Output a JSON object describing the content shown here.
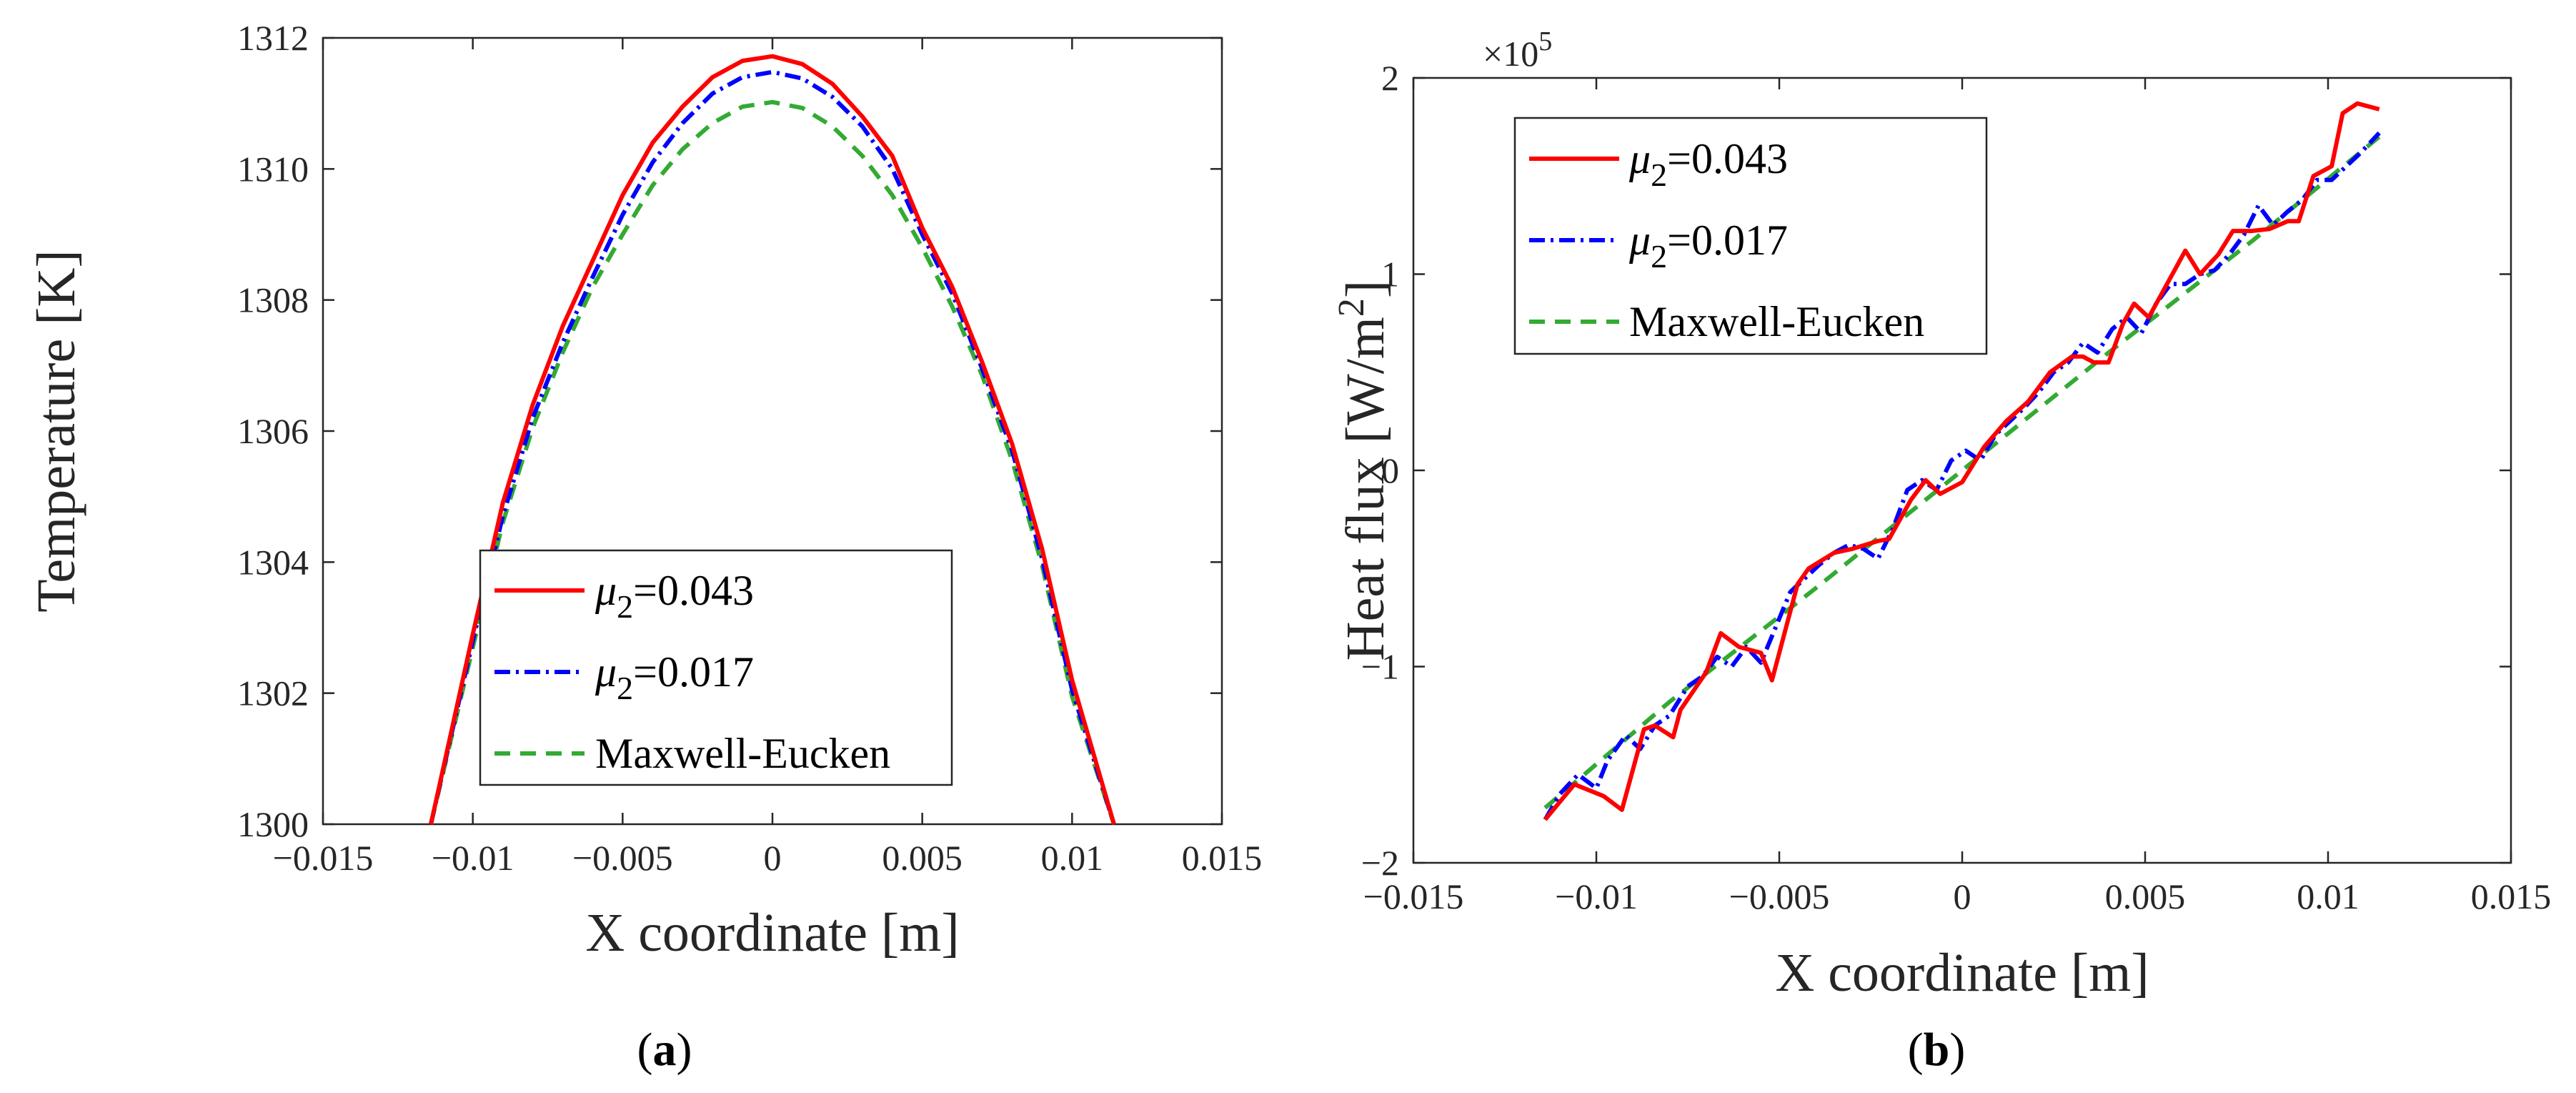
{
  "chart_data": [
    {
      "type": "line",
      "panel_label": "a",
      "xlabel": "X coordinate [m]",
      "ylabel": "Temperature [K]",
      "xlim": [
        -0.015,
        0.015
      ],
      "ylim": [
        1300,
        1312
      ],
      "xticks": [
        -0.015,
        -0.01,
        -0.005,
        0,
        0.005,
        0.01,
        0.015
      ],
      "xtick_labels": [
        "−0.015",
        "−0.01",
        "−0.005",
        "0",
        "0.005",
        "0.01",
        "0.015"
      ],
      "yticks": [
        1300,
        1302,
        1304,
        1306,
        1308,
        1310,
        1312
      ],
      "ytick_labels": [
        "1300",
        "1302",
        "1304",
        "1306",
        "1308",
        "1310",
        "1312"
      ],
      "legend_position": "bottom-center",
      "series": [
        {
          "name_sym": "μ",
          "name_sub": "2",
          "name_tail": "=0.043",
          "color": "#ff0000",
          "style": "solid",
          "x": [
            -0.0114,
            -0.01,
            -0.009,
            -0.008,
            -0.007,
            -0.006,
            -0.005,
            -0.004,
            -0.003,
            -0.002,
            -0.001,
            0,
            0.001,
            0.002,
            0.003,
            0.004,
            0.005,
            0.006,
            0.007,
            0.008,
            0.009,
            0.01,
            0.0114
          ],
          "y": [
            1300.0,
            1302.9,
            1304.9,
            1306.4,
            1307.6,
            1308.6,
            1309.6,
            1310.4,
            1310.95,
            1311.4,
            1311.65,
            1311.72,
            1311.6,
            1311.3,
            1310.8,
            1310.2,
            1309.1,
            1308.2,
            1307.05,
            1305.8,
            1304.2,
            1302.2,
            1300.0
          ]
        },
        {
          "name_sym": "μ",
          "name_sub": "2",
          "name_tail": "=0.017",
          "color": "#0000ff",
          "style": "dashdot",
          "x": [
            -0.0114,
            -0.01,
            -0.009,
            -0.008,
            -0.007,
            -0.006,
            -0.005,
            -0.004,
            -0.003,
            -0.002,
            -0.001,
            0,
            0.001,
            0.002,
            0.003,
            0.004,
            0.005,
            0.006,
            0.007,
            0.008,
            0.009,
            0.01,
            0.0114
          ],
          "y": [
            1300.0,
            1302.8,
            1304.7,
            1306.2,
            1307.35,
            1308.35,
            1309.3,
            1310.1,
            1310.7,
            1311.15,
            1311.4,
            1311.48,
            1311.38,
            1311.1,
            1310.65,
            1310.0,
            1309.0,
            1308.1,
            1306.95,
            1305.7,
            1304.05,
            1302.05,
            1300.0
          ]
        },
        {
          "name": "Maxwell-Eucken",
          "color": "#33aa33",
          "style": "dashed",
          "x": [
            -0.0114,
            -0.01,
            -0.009,
            -0.008,
            -0.007,
            -0.006,
            -0.005,
            -0.004,
            -0.003,
            -0.002,
            -0.001,
            0,
            0.001,
            0.002,
            0.003,
            0.004,
            0.005,
            0.006,
            0.007,
            0.008,
            0.009,
            0.01,
            0.0114
          ],
          "y": [
            1300.0,
            1302.7,
            1304.6,
            1306.05,
            1307.2,
            1308.2,
            1309.0,
            1309.75,
            1310.3,
            1310.7,
            1310.95,
            1311.02,
            1310.93,
            1310.65,
            1310.2,
            1309.6,
            1308.8,
            1307.9,
            1306.85,
            1305.55,
            1303.95,
            1301.95,
            1300.0
          ]
        }
      ]
    },
    {
      "type": "line",
      "panel_label": "b",
      "xlabel": "X coordinate [m]",
      "ylabel_main": "Heat flux [W/m",
      "ylabel_sup": "2",
      "ylabel_tail": "]",
      "y_multiplier_base": "×10",
      "y_multiplier_exp": "5",
      "xlim": [
        -0.015,
        0.015
      ],
      "ylim": [
        -2,
        2
      ],
      "xticks": [
        -0.015,
        -0.01,
        -0.005,
        0,
        0.005,
        0.01,
        0.015
      ],
      "xtick_labels": [
        "−0.015",
        "−0.01",
        "−0.005",
        "0",
        "0.005",
        "0.01",
        "0.015"
      ],
      "yticks": [
        -2,
        -1,
        0,
        1,
        2
      ],
      "ytick_labels": [
        "−2",
        "−1",
        "0",
        "1",
        "2"
      ],
      "legend_position": "top-left",
      "series": [
        {
          "name_sym": "μ",
          "name_sub": "2",
          "name_tail": "=0.043",
          "color": "#ff0000",
          "style": "solid",
          "x": [
            -0.0114,
            -0.0106,
            -0.0098,
            -0.0093,
            -0.0087,
            -0.0084,
            -0.0079,
            -0.0077,
            -0.007,
            -0.0066,
            -0.0061,
            -0.0055,
            -0.0052,
            -0.0045,
            -0.0042,
            -0.0035,
            -0.003,
            -0.0023,
            -0.002,
            -0.0014,
            -0.001,
            -0.0006,
            0.0,
            0.0006,
            0.0012,
            0.0018,
            0.0024,
            0.003,
            0.0033,
            0.0036,
            0.004,
            0.0044,
            0.0047,
            0.0051,
            0.0056,
            0.0061,
            0.0065,
            0.007,
            0.0074,
            0.0079,
            0.0084,
            0.0089,
            0.0092,
            0.0096,
            0.0101,
            0.0104,
            0.0108,
            0.0114
          ],
          "y": [
            -1.78,
            -1.6,
            -1.66,
            -1.73,
            -1.32,
            -1.3,
            -1.36,
            -1.22,
            -1.03,
            -0.83,
            -0.9,
            -0.93,
            -1.07,
            -0.58,
            -0.5,
            -0.42,
            -0.4,
            -0.36,
            -0.35,
            -0.15,
            -0.05,
            -0.12,
            -0.06,
            0.12,
            0.25,
            0.35,
            0.5,
            0.58,
            0.58,
            0.55,
            0.55,
            0.75,
            0.85,
            0.78,
            0.95,
            1.12,
            1.0,
            1.1,
            1.22,
            1.22,
            1.23,
            1.27,
            1.27,
            1.5,
            1.55,
            1.82,
            1.87,
            1.84
          ]
        },
        {
          "name_sym": "μ",
          "name_sub": "2",
          "name_tail": "=0.017",
          "color": "#0000ff",
          "style": "dashdot",
          "x": [
            -0.0114,
            -0.011,
            -0.0105,
            -0.01,
            -0.0097,
            -0.0092,
            -0.0088,
            -0.0084,
            -0.008,
            -0.0075,
            -0.0071,
            -0.0067,
            -0.0063,
            -0.0059,
            -0.0055,
            -0.0051,
            -0.0047,
            -0.0043,
            -0.0039,
            -0.0035,
            -0.0031,
            -0.0027,
            -0.0023,
            -0.0019,
            -0.0015,
            -0.0011,
            -0.0007,
            -0.0003,
            0.0001,
            0.0005,
            0.0009,
            0.0013,
            0.0017,
            0.0021,
            0.0025,
            0.0029,
            0.0033,
            0.0037,
            0.0041,
            0.0045,
            0.0049,
            0.0053,
            0.0057,
            0.0061,
            0.0065,
            0.0069,
            0.0073,
            0.0077,
            0.0081,
            0.0085,
            0.0089,
            0.0093,
            0.0097,
            0.0101,
            0.0105,
            0.0109,
            0.0114
          ],
          "y": [
            -1.78,
            -1.65,
            -1.55,
            -1.62,
            -1.48,
            -1.35,
            -1.42,
            -1.3,
            -1.25,
            -1.1,
            -1.05,
            -0.95,
            -1.0,
            -0.9,
            -0.98,
            -0.8,
            -0.62,
            -0.55,
            -0.48,
            -0.42,
            -0.38,
            -0.4,
            -0.45,
            -0.3,
            -0.1,
            -0.05,
            -0.1,
            0.05,
            0.1,
            0.05,
            0.18,
            0.25,
            0.32,
            0.4,
            0.5,
            0.55,
            0.65,
            0.6,
            0.72,
            0.78,
            0.7,
            0.85,
            0.95,
            0.95,
            1.0,
            1.02,
            1.1,
            1.2,
            1.35,
            1.25,
            1.32,
            1.38,
            1.48,
            1.48,
            1.55,
            1.62,
            1.72
          ]
        },
        {
          "name": "Maxwell-Eucken",
          "color": "#33aa33",
          "style": "dashed",
          "x": [
            -0.0114,
            -0.008,
            -0.004,
            0.0,
            0.004,
            0.008,
            0.0114
          ],
          "y": [
            -1.72,
            -1.18,
            -0.6,
            0.0,
            0.6,
            1.18,
            1.7
          ]
        }
      ]
    }
  ]
}
